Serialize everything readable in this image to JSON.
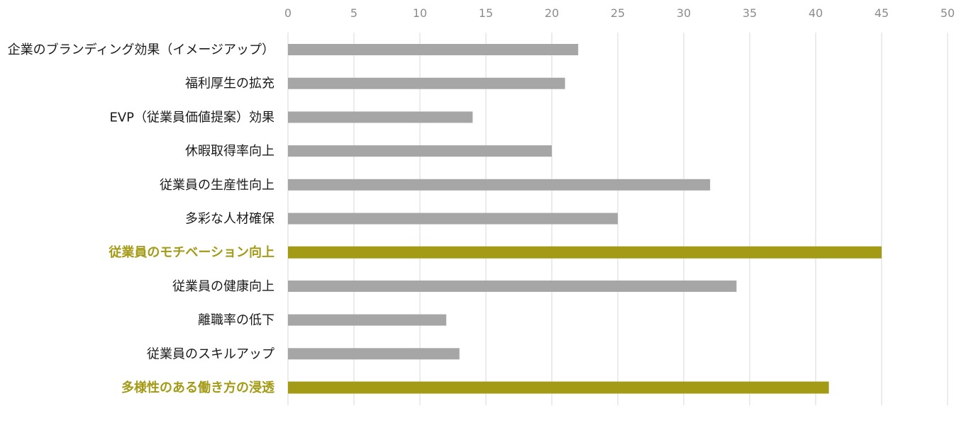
{
  "chart_data": {
    "type": "bar",
    "orientation": "horizontal",
    "categories": [
      "企業のブランディング効果（イメージアップ）",
      "福利厚生の拡充",
      "EVP（従業員価値提案）効果",
      "休暇取得率向上",
      "従業員の生産性向上",
      "多彩な人材確保",
      "従業員のモチベーション向上",
      "従業員の健康向上",
      "離職率の低下",
      "従業員のスキルアップ",
      "多様性のある働き方の浸透"
    ],
    "values": [
      22,
      21,
      14,
      20,
      32,
      25,
      45,
      34,
      12,
      13,
      41
    ],
    "highlighted": [
      false,
      false,
      false,
      false,
      false,
      false,
      true,
      false,
      false,
      false,
      true
    ],
    "xlim": [
      0,
      50
    ],
    "xticks": [
      0,
      5,
      10,
      15,
      20,
      25,
      30,
      35,
      40,
      45,
      50
    ],
    "axis_position": "top",
    "grid": true,
    "legend": "none",
    "colors": {
      "bar": "#a6a6a6",
      "highlight": "#a39a16",
      "grid": "#d9d9d9",
      "tick_text": "#8c8c8c",
      "label_text": "#1a1a1a"
    }
  }
}
